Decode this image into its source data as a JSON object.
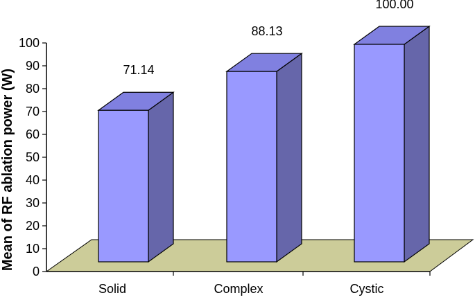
{
  "chart_data": {
    "type": "bar",
    "style": "3d-column",
    "categories": [
      "Solid",
      "Complex",
      "Cystic"
    ],
    "values": [
      71.14,
      88.13,
      100.0
    ],
    "data_labels": [
      "71.14",
      "88.13",
      "100.00"
    ],
    "title": "",
    "xlabel": "",
    "ylabel": "Mean of RF ablation power (W)",
    "ylim": [
      0,
      100
    ],
    "yticks": [
      "0",
      "10",
      "20",
      "30",
      "40",
      "50",
      "60",
      "70",
      "80",
      "90",
      "100"
    ],
    "grid": false,
    "legend": "none",
    "colors": {
      "bar_front": "#9999ff",
      "bar_side": "#6666aa",
      "bar_top": "#8080e0",
      "floor": "#cccc99",
      "stroke": "#000000"
    }
  }
}
